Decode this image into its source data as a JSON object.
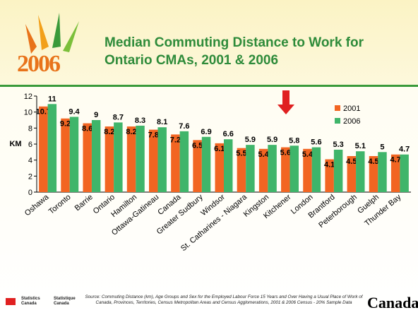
{
  "slide": {
    "logo_text": "2006",
    "source": "Source: Commuting Distance (km), Age Groups and Sex for the Employed Labour Force 15 Years and Over Having a Usual Place of Work of Canada, Provinces, Territories, Census Metropolitan Areas and Census Agglomerations, 2001 & 2006 Census - 20% Sample Data",
    "agency_en": "Statistics Canada",
    "agency_fr": "Statistique Canada",
    "wordmark": "Canada"
  },
  "chart_data": {
    "type": "bar",
    "title": "Median Commuting Distance to Work for Ontario CMAs, 2001 & 2006",
    "ylabel": "KM",
    "categories": [
      "Oshawa",
      "Toronto",
      "Barrie",
      "Ontario",
      "Hamilton",
      "Ottawa-Gatineau",
      "Canada",
      "Greater Sudbury",
      "Windsor",
      "St. Catharines - Niagara",
      "Kingston",
      "Kitchener",
      "London",
      "Brantford",
      "Peterborough",
      "Guelph",
      "Thunder Bay"
    ],
    "series": [
      {
        "name": "2001",
        "color": "#f26522",
        "values": [
          10.7,
          9.2,
          8.6,
          8.2,
          8.2,
          7.8,
          7.2,
          6.5,
          6.1,
          5.5,
          5.4,
          5.6,
          5.4,
          4.1,
          4.5,
          4.5,
          4.7
        ]
      },
      {
        "name": "2006",
        "color": "#3fb56a",
        "values": [
          11,
          9.4,
          9,
          8.7,
          8.3,
          8.1,
          7.6,
          6.9,
          6.6,
          5.9,
          5.9,
          5.8,
          5.6,
          5.3,
          5.1,
          5,
          4.7
        ]
      }
    ],
    "ylim": [
      0,
      12
    ],
    "yticks": [
      0,
      2,
      4,
      6,
      8,
      10,
      12
    ],
    "grid": false,
    "legend": "upper right"
  }
}
